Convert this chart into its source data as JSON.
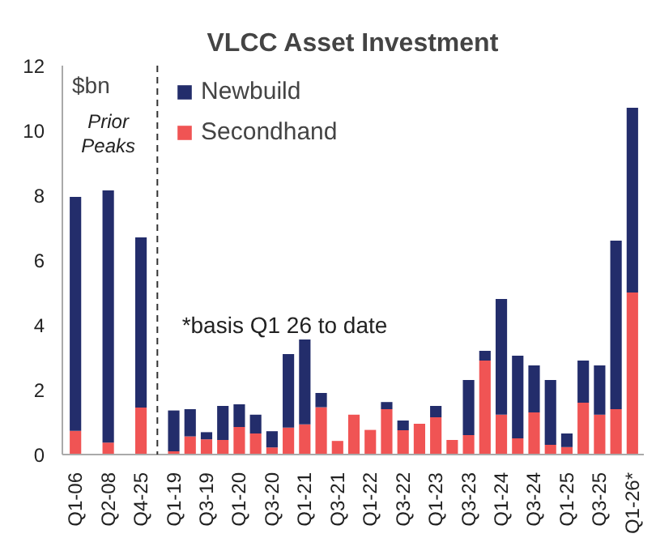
{
  "chart_data": {
    "type": "bar",
    "title": "VLCC Asset Investment",
    "ylabel": "$bn",
    "stacked": true,
    "categories": [
      "Q1-06",
      "Q2-08",
      "Q4-25",
      "Q1-19",
      null,
      "Q3-19",
      null,
      "Q1-20",
      null,
      "Q3-20",
      null,
      "Q1-21",
      null,
      "Q3-21",
      null,
      "Q1-22",
      null,
      "Q3-22",
      null,
      "Q1-23",
      null,
      "Q3-23",
      null,
      "Q1-24",
      null,
      "Q3-24",
      null,
      "Q1-25",
      null,
      "Q3-25",
      null,
      "Q1-26*"
    ],
    "series": [
      {
        "name": "Secondhand",
        "color": "#f05454",
        "values": [
          0.73,
          0.37,
          1.45,
          0.1,
          0.56,
          0.47,
          0.45,
          0.85,
          0.65,
          0.22,
          0.83,
          0.93,
          1.46,
          0.42,
          1.23,
          0.76,
          1.4,
          0.75,
          0.95,
          1.15,
          0.45,
          0.6,
          2.9,
          1.23,
          0.5,
          1.3,
          0.3,
          0.23,
          1.6,
          1.23,
          1.4,
          5.0
        ]
      },
      {
        "name": "Newbuild",
        "color": "#232d6b",
        "values": [
          7.22,
          7.78,
          5.25,
          1.26,
          0.84,
          0.22,
          1.05,
          0.7,
          0.58,
          0.5,
          2.27,
          2.62,
          0.44,
          0,
          0,
          0,
          0.22,
          0.3,
          0,
          0.35,
          0,
          1.7,
          0.3,
          3.57,
          2.55,
          1.45,
          2.0,
          0.42,
          1.3,
          1.52,
          5.2,
          5.7
        ]
      }
    ],
    "ylim": [
      0,
      12
    ],
    "yticks": [
      0,
      2,
      4,
      6,
      8,
      10,
      12
    ],
    "grid": false,
    "legend": "top",
    "annotations": [
      "Prior\nPeaks",
      "*basis Q1 26 to date"
    ]
  }
}
